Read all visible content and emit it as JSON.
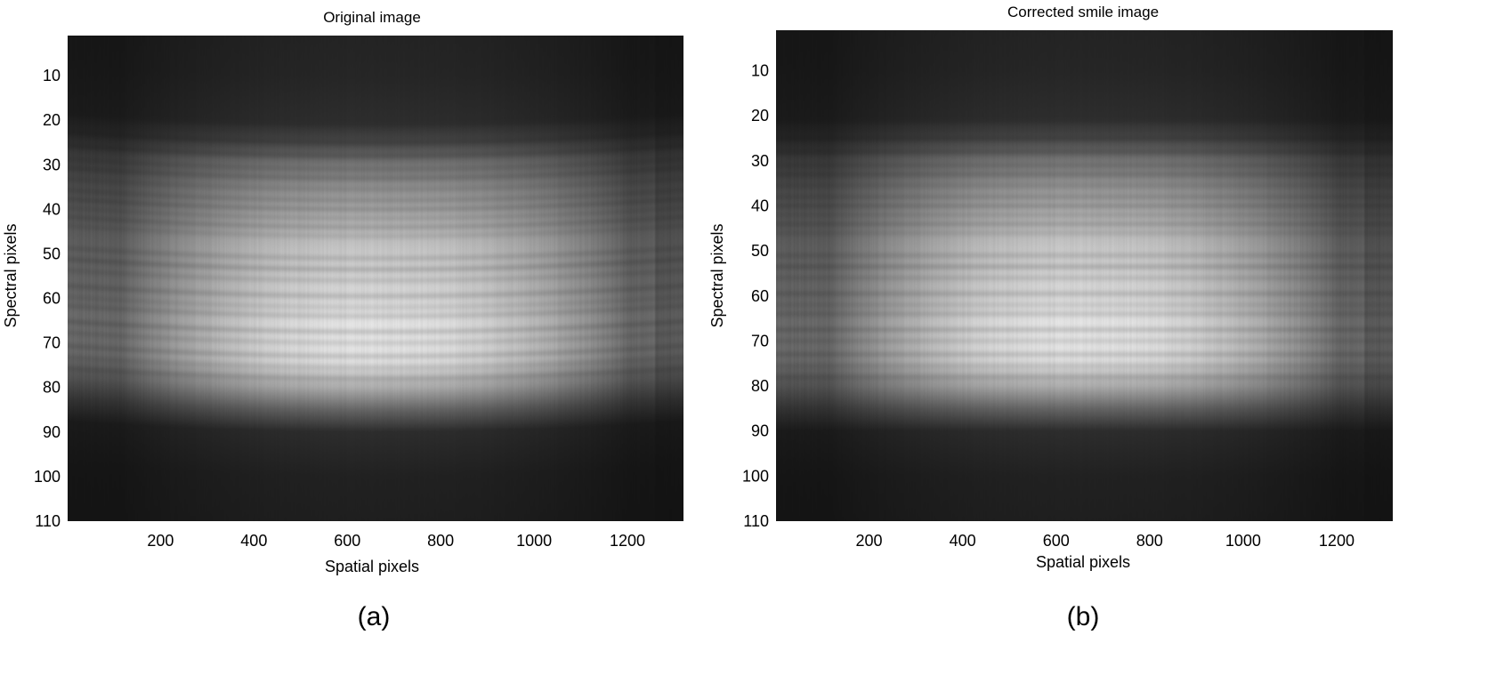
{
  "chart_data": [
    {
      "type": "heatmap",
      "title": "Original image",
      "xlabel": "Spatial pixels",
      "ylabel": "Spectral pixels",
      "xlim": [
        1,
        1320
      ],
      "ylim": [
        110,
        1
      ],
      "xticks": [
        200,
        400,
        600,
        800,
        1000,
        1200
      ],
      "yticks": [
        10,
        20,
        30,
        40,
        50,
        60,
        70,
        80,
        90,
        100,
        110
      ],
      "colormap": "gray",
      "smile": true,
      "panel_label": "(a)",
      "intensity_profile": {
        "spectral": [
          1,
          10,
          20,
          25,
          30,
          40,
          50,
          60,
          67,
          74,
          80,
          85,
          90,
          100,
          110
        ],
        "relative_intensity": [
          0.1,
          0.11,
          0.14,
          0.25,
          0.45,
          0.66,
          0.8,
          0.86,
          0.92,
          0.9,
          0.68,
          0.38,
          0.14,
          0.09,
          0.08
        ]
      },
      "dark_lines": [
        21,
        25,
        28,
        31,
        33,
        35.5,
        38,
        40,
        42,
        44,
        46,
        51,
        53.5,
        56,
        59.5,
        62,
        64,
        67.5,
        70,
        73,
        75.5,
        78
      ]
    },
    {
      "type": "heatmap",
      "title": "Corrected smile image",
      "xlabel": "Spatial pixels",
      "ylabel": "Spectral pixels",
      "xlim": [
        1,
        1320
      ],
      "ylim": [
        110,
        1
      ],
      "xticks": [
        200,
        400,
        600,
        800,
        1000,
        1200
      ],
      "yticks": [
        10,
        20,
        30,
        40,
        50,
        60,
        70,
        80,
        90,
        100,
        110
      ],
      "colormap": "gray",
      "smile": false,
      "panel_label": "(b)",
      "intensity_profile": {
        "spectral": [
          1,
          10,
          20,
          25,
          30,
          40,
          50,
          60,
          67,
          74,
          80,
          85,
          90,
          100,
          110
        ],
        "relative_intensity": [
          0.1,
          0.11,
          0.14,
          0.25,
          0.45,
          0.66,
          0.8,
          0.86,
          0.92,
          0.9,
          0.68,
          0.38,
          0.14,
          0.09,
          0.08
        ]
      },
      "dark_lines": [
        21,
        25,
        28,
        31,
        33,
        35.5,
        38,
        40,
        42,
        44,
        46,
        51,
        53.5,
        56,
        59.5,
        62,
        64,
        67.5,
        70,
        73,
        75.5,
        78
      ]
    }
  ]
}
